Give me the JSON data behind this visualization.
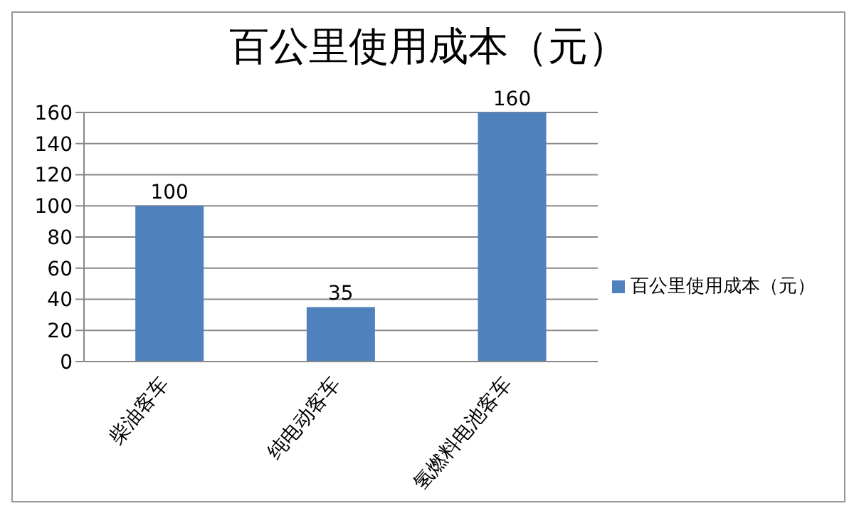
{
  "chart_data": {
    "type": "bar",
    "title": "百公里使用成本（元）",
    "categories": [
      "柴油客车",
      "纯电动客车",
      "氢燃料电池客车"
    ],
    "series": [
      {
        "name": "百公里使用成本（元）",
        "color": "#4f81bd",
        "values": [
          100,
          35,
          160
        ]
      }
    ],
    "ylim": [
      0,
      160
    ],
    "yticks": [
      0,
      20,
      40,
      60,
      80,
      100,
      120,
      140,
      160
    ],
    "grid": "y",
    "legend": "right",
    "data_labels": true
  }
}
